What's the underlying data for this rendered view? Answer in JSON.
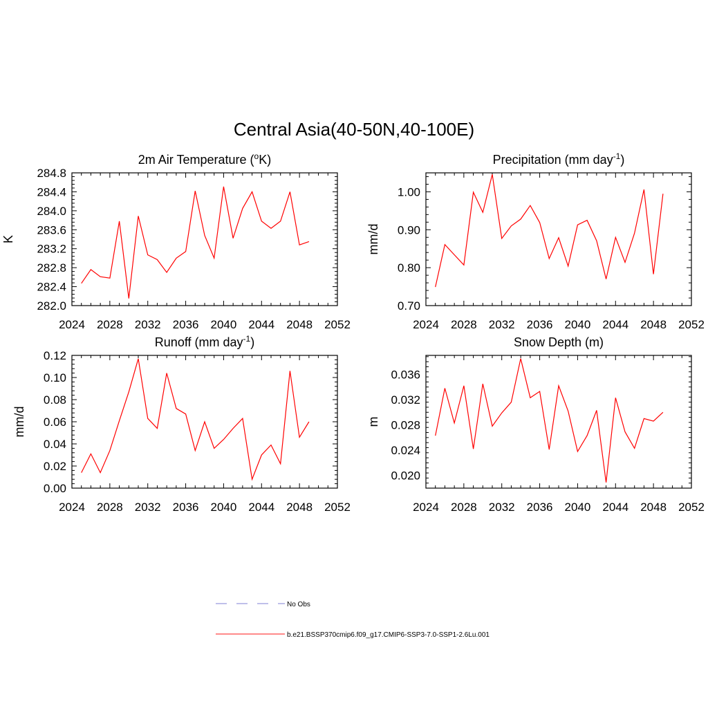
{
  "title": "Central Asia(40-50N,40-100E)",
  "chart_data": [
    {
      "type": "line",
      "title": "2m Air Temperature (°K)",
      "title_main": "2m Air Temperature (",
      "title_sup": "o",
      "title_tail": "K)",
      "ylabel": "K",
      "xlim": [
        2024,
        2052
      ],
      "ylim": [
        282.0,
        284.8
      ],
      "xticks": [
        "2024",
        "2028",
        "2032",
        "2036",
        "2040",
        "2044",
        "2048",
        "2052"
      ],
      "yticks": [
        "282.0",
        "282.4",
        "282.8",
        "283.2",
        "283.6",
        "284.0",
        "284.4",
        "284.8"
      ],
      "series": [
        {
          "color": "#ff0000",
          "x": [
            2025,
            2026,
            2027,
            2028,
            2029,
            2030,
            2031,
            2032,
            2033,
            2034,
            2035,
            2036,
            2037,
            2038,
            2039,
            2040,
            2041,
            2042,
            2043,
            2044,
            2045,
            2046,
            2047,
            2048,
            2049
          ],
          "values": [
            282.47,
            282.76,
            282.61,
            282.58,
            283.78,
            282.15,
            283.89,
            283.07,
            282.97,
            282.7,
            283.0,
            283.14,
            284.42,
            283.48,
            283.0,
            284.51,
            283.42,
            284.05,
            284.4,
            283.78,
            283.63,
            283.78,
            284.4,
            283.28,
            283.35
          ]
        }
      ]
    },
    {
      "type": "line",
      "title": "Precipitation (mm day-1)",
      "title_main": "Precipitation (mm day",
      "title_sup": "-1",
      "title_tail": ")",
      "ylabel": "mm/d",
      "xlim": [
        2024,
        2052
      ],
      "ylim": [
        0.7,
        1.05
      ],
      "xticks": [
        "2024",
        "2028",
        "2032",
        "2036",
        "2040",
        "2044",
        "2048",
        "2052"
      ],
      "yticks": [
        "0.70",
        "0.80",
        "0.90",
        "1.00"
      ],
      "series": [
        {
          "color": "#ff0000",
          "x": [
            2025,
            2026,
            2027,
            2028,
            2029,
            2030,
            2031,
            2032,
            2033,
            2034,
            2035,
            2036,
            2037,
            2038,
            2039,
            2040,
            2041,
            2042,
            2043,
            2044,
            2045,
            2046,
            2047,
            2048,
            2049
          ],
          "values": [
            0.749,
            0.861,
            0.834,
            0.807,
            0.999,
            0.946,
            1.046,
            0.877,
            0.91,
            0.928,
            0.964,
            0.919,
            0.824,
            0.879,
            0.804,
            0.913,
            0.925,
            0.871,
            0.77,
            0.88,
            0.814,
            0.891,
            1.006,
            0.783,
            0.995
          ]
        }
      ]
    },
    {
      "type": "line",
      "title": "Runoff (mm day-1)",
      "title_main": "Runoff (mm day",
      "title_sup": "-1",
      "title_tail": ")",
      "ylabel": "mm/d",
      "xlim": [
        2024,
        2052
      ],
      "ylim": [
        0.0,
        0.12
      ],
      "xticks": [
        "2024",
        "2028",
        "2032",
        "2036",
        "2040",
        "2044",
        "2048",
        "2052"
      ],
      "yticks": [
        "0.00",
        "0.02",
        "0.04",
        "0.06",
        "0.08",
        "0.10",
        "0.12"
      ],
      "series": [
        {
          "color": "#ff0000",
          "x": [
            2025,
            2026,
            2027,
            2028,
            2029,
            2030,
            2031,
            2032,
            2033,
            2034,
            2035,
            2036,
            2037,
            2038,
            2039,
            2040,
            2041,
            2042,
            2043,
            2044,
            2045,
            2046,
            2047,
            2048,
            2049
          ],
          "values": [
            0.014,
            0.031,
            0.014,
            0.034,
            0.061,
            0.087,
            0.117,
            0.063,
            0.054,
            0.104,
            0.072,
            0.067,
            0.034,
            0.06,
            0.036,
            0.044,
            0.054,
            0.063,
            0.008,
            0.03,
            0.039,
            0.022,
            0.106,
            0.046,
            0.06
          ]
        }
      ]
    },
    {
      "type": "line",
      "title": "Snow Depth (m)",
      "title_main": "Snow Depth (m)",
      "title_sup": "",
      "title_tail": "",
      "ylabel": "m",
      "xlim": [
        2024,
        2052
      ],
      "ylim": [
        0.018,
        0.039
      ],
      "xticks": [
        "2024",
        "2028",
        "2032",
        "2036",
        "2040",
        "2044",
        "2048",
        "2052"
      ],
      "yticks": [
        "0.020",
        "0.024",
        "0.028",
        "0.032",
        "0.036"
      ],
      "series": [
        {
          "color": "#ff0000",
          "x": [
            2025,
            2026,
            2027,
            2028,
            2029,
            2030,
            2031,
            2032,
            2033,
            2034,
            2035,
            2036,
            2037,
            2038,
            2039,
            2040,
            2041,
            2042,
            2043,
            2044,
            2045,
            2046,
            2047,
            2048,
            2049
          ],
          "values": [
            0.0263,
            0.0338,
            0.0283,
            0.0342,
            0.0242,
            0.0345,
            0.0278,
            0.0299,
            0.0316,
            0.0385,
            0.0323,
            0.0333,
            0.0241,
            0.0342,
            0.0302,
            0.0238,
            0.0263,
            0.0303,
            0.0189,
            0.0323,
            0.0269,
            0.0243,
            0.029,
            0.0286,
            0.03
          ]
        }
      ]
    }
  ],
  "legend": [
    {
      "label": "No Obs",
      "color": "#9999dd",
      "style": "dashed"
    },
    {
      "label": "b.e21.BSSP370cmip6.f09_g17.CMIP6-SSP3-7.0-SSP1-2.6Lu.001",
      "color": "#ff4444",
      "style": "solid"
    }
  ]
}
